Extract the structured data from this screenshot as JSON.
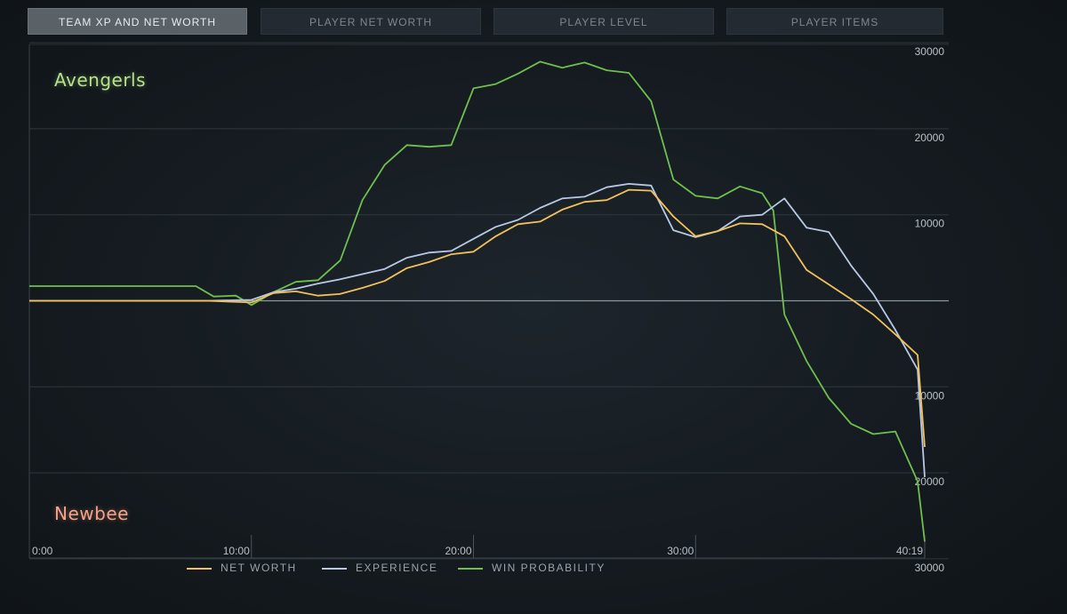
{
  "tabs": [
    {
      "label": "TEAM XP AND NET WORTH",
      "active": true
    },
    {
      "label": "PLAYER NET WORTH",
      "active": false
    },
    {
      "label": "PLAYER LEVEL",
      "active": false
    },
    {
      "label": "PLAYER ITEMS",
      "active": false
    }
  ],
  "teams": {
    "top": "Avengerls",
    "bottom": "Newbee"
  },
  "legend": [
    {
      "label": "NET WORTH",
      "color": "#f2c15b"
    },
    {
      "label": "EXPERIENCE",
      "color": "#b8c9e6"
    },
    {
      "label": "WIN PROBABILITY",
      "color": "#6fbf4f"
    }
  ],
  "chart_data": {
    "type": "line",
    "title": "",
    "xlabel": "",
    "ylabel": "",
    "x_unit": "minutes",
    "x_ticks": [
      {
        "value": 0,
        "label": "0:00"
      },
      {
        "value": 10,
        "label": "10:00"
      },
      {
        "value": 20,
        "label": "20:00"
      },
      {
        "value": 30,
        "label": "30:00"
      },
      {
        "value": 40.32,
        "label": "40:19"
      }
    ],
    "xlim": [
      0,
      40.32
    ],
    "y_ticks": [
      {
        "value": 30000,
        "label": "30000"
      },
      {
        "value": 20000,
        "label": "20000"
      },
      {
        "value": 10000,
        "label": "10000"
      },
      {
        "value": -10000,
        "label": "10000"
      },
      {
        "value": -20000,
        "label": "20000"
      },
      {
        "value": -30000,
        "label": "30000"
      }
    ],
    "ylim": [
      -30000,
      30000
    ],
    "grid": true,
    "legend_position": "bottom",
    "series": [
      {
        "name": "NET WORTH",
        "color": "#f2c15b",
        "x": [
          0,
          8,
          9,
          10,
          11,
          12,
          13,
          14,
          15,
          16,
          17,
          18,
          19,
          20,
          21,
          22,
          23,
          24,
          25,
          26,
          27,
          28,
          29,
          30,
          31,
          32,
          33,
          34,
          35,
          36,
          37,
          38,
          39,
          40,
          40.32
        ],
        "y": [
          0,
          0,
          -100,
          -200,
          900,
          1100,
          600,
          800,
          1500,
          2300,
          3800,
          4500,
          5400,
          5700,
          7500,
          8900,
          9200,
          10600,
          11500,
          11700,
          12900,
          12800,
          9800,
          7500,
          8100,
          9000,
          8900,
          7500,
          3600,
          1900,
          200,
          -1600,
          -3900,
          -6300,
          -17000
        ]
      },
      {
        "name": "EXPERIENCE",
        "color": "#b8c9e6",
        "x": [
          0,
          8,
          9,
          10,
          11,
          12,
          13,
          14,
          15,
          16,
          17,
          18,
          19,
          20,
          21,
          22,
          23,
          24,
          25,
          26,
          27,
          28,
          29,
          30,
          31,
          32,
          33,
          34,
          35,
          36,
          37,
          38,
          39,
          40,
          40.32
        ],
        "y": [
          0,
          0,
          50,
          100,
          1000,
          1400,
          2000,
          2500,
          3100,
          3700,
          5000,
          5600,
          5800,
          7200,
          8600,
          9400,
          10800,
          11900,
          12100,
          13200,
          13600,
          13400,
          8200,
          7400,
          8100,
          9800,
          10000,
          11900,
          8500,
          8000,
          4100,
          800,
          -3400,
          -8000,
          -20500
        ]
      },
      {
        "name": "WIN PROBABILITY",
        "color": "#6fbf4f",
        "x": [
          0,
          7.5,
          8.3,
          9.3,
          10,
          11,
          12,
          13,
          14,
          15,
          16,
          17,
          18,
          19,
          20,
          21,
          22,
          23,
          24,
          25,
          26,
          27,
          28,
          29,
          30,
          31,
          32,
          33,
          33.5,
          34,
          35,
          36,
          37,
          38,
          39,
          40,
          40.32
        ],
        "y": [
          1700,
          1700,
          500,
          600,
          -500,
          1000,
          2200,
          2400,
          4700,
          11700,
          15800,
          18100,
          17900,
          18100,
          24700,
          25200,
          26400,
          27800,
          27100,
          27700,
          26800,
          26500,
          23200,
          14100,
          12200,
          11900,
          13300,
          12500,
          10500,
          -1600,
          -7000,
          -11300,
          -14300,
          -15500,
          -15200,
          -21000,
          -28000
        ]
      }
    ]
  }
}
